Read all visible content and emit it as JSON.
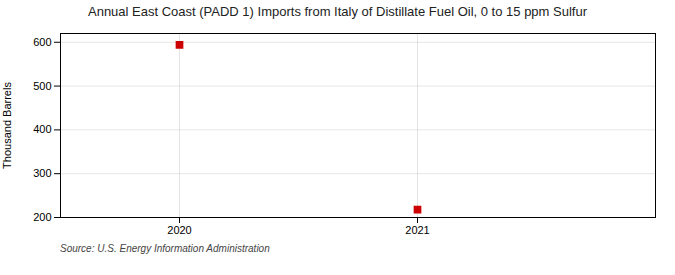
{
  "chart_data": {
    "type": "scatter",
    "title": "Annual East Coast (PADD 1) Imports from Italy of Distillate Fuel Oil, 0 to 15 ppm Sulfur",
    "ylabel": "Thousand Barrels",
    "source": "Source: U.S. Energy Information Administration",
    "x": [
      2020,
      2021
    ],
    "values": [
      594,
      218
    ],
    "color": "#cc0000",
    "marker": "square",
    "xlim": [
      2019.5,
      2022.0
    ],
    "xticks": [
      2020,
      2021
    ],
    "ylim": [
      200,
      620
    ],
    "yticks": [
      200,
      300,
      400,
      500,
      600
    ],
    "grid": true
  }
}
